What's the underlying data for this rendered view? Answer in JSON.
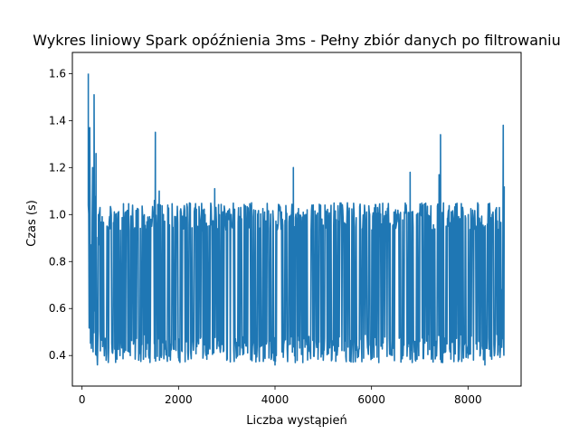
{
  "chart_data": {
    "type": "line",
    "title": "Wykres liniowy Spark opóźnienia 3ms - Pełny zbiór danych po filtrowaniu",
    "xlabel": "Liczba wystąpień",
    "ylabel": "Czas (s)",
    "xlim": [
      -200,
      9100
    ],
    "ylim": [
      0.27,
      1.69
    ],
    "xticks": [
      0,
      2000,
      4000,
      6000,
      8000
    ],
    "yticks": [
      0.4,
      0.6,
      0.8,
      1.0,
      1.2,
      1.4,
      1.6
    ],
    "xtick_labels": [
      "0",
      "2000",
      "4000",
      "6000",
      "8000"
    ],
    "ytick_labels": [
      "0.4",
      "0.6",
      "0.8",
      "1.0",
      "1.2",
      "1.4",
      "1.6"
    ],
    "grid": false,
    "series": [
      {
        "color": "#1f77b4",
        "x_range": [
          130,
          8750
        ],
        "approx_mean": 0.7,
        "band_low": 0.37,
        "band_high": 1.05,
        "x": [
          130,
          160,
          190,
          220,
          250,
          270,
          290,
          310,
          340,
          380,
          420,
          500,
          700,
          1000,
          1500,
          1520,
          1560,
          1600,
          2000,
          2500,
          2750,
          3000,
          3500,
          4000,
          4380,
          4420,
          4500,
          5000,
          5500,
          6000,
          6500,
          6800,
          6850,
          7000,
          7400,
          7430,
          7480,
          7600,
          8000,
          8200,
          8350,
          8500,
          8650,
          8700,
          8730,
          8750
        ],
        "y": [
          1.6,
          1.37,
          0.66,
          1.2,
          1.51,
          0.59,
          1.26,
          0.54,
          1.0,
          0.42,
          0.88,
          0.38,
          1.0,
          0.4,
          1.06,
          1.35,
          0.45,
          1.1,
          0.39,
          1.02,
          1.11,
          0.38,
          1.02,
          0.36,
          1.2,
          0.37,
          1.0,
          0.38,
          1.05,
          0.4,
          1.02,
          1.18,
          0.44,
          1.0,
          1.17,
          1.34,
          0.44,
          1.02,
          0.39,
          1.05,
          0.36,
          1.0,
          1.03,
          0.68,
          1.38,
          1.12
        ]
      }
    ]
  }
}
